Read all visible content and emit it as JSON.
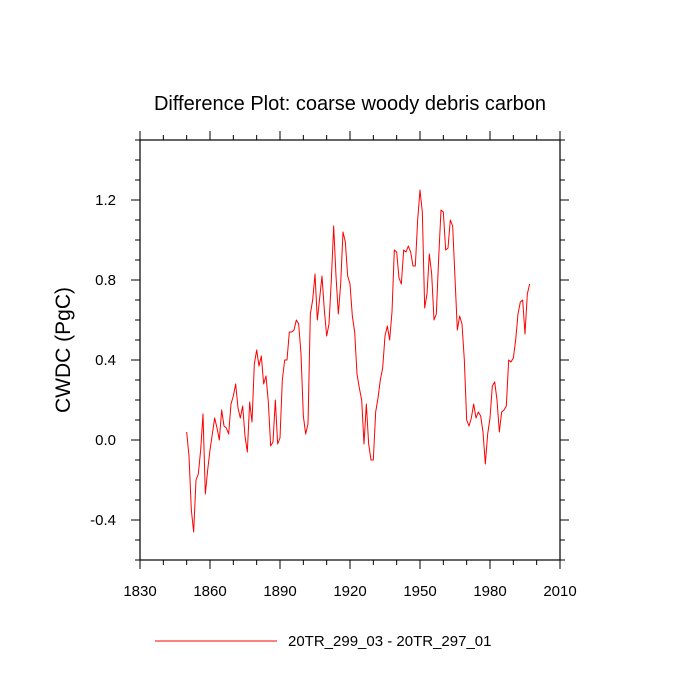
{
  "chart_data": {
    "type": "line",
    "title": "Difference Plot: coarse woody debris carbon",
    "xlabel": "",
    "ylabel": "CWDC  (PgC)",
    "xlim": [
      1830,
      2010
    ],
    "ylim": [
      -0.6,
      1.5
    ],
    "x_ticks": [
      1830,
      1860,
      1890,
      1920,
      1950,
      1980,
      2010
    ],
    "x_tick_labels": [
      "1830",
      "1860",
      "1890",
      "1920",
      "1950",
      "1980",
      "2010"
    ],
    "y_ticks": [
      -0.4,
      0.0,
      0.4,
      0.8,
      1.2
    ],
    "y_tick_labels": [
      "-0.4",
      "0.0",
      "0.4",
      "0.8",
      "1.2"
    ],
    "color": "#ff0000",
    "legend_position": "bottom-center",
    "series": [
      {
        "name": "20TR_299_03 - 20TR_297_01",
        "start_year": 1850,
        "values": [
          0.04,
          -0.08,
          -0.35,
          -0.46,
          -0.2,
          -0.17,
          -0.05,
          0.13,
          -0.27,
          -0.15,
          -0.05,
          0.03,
          0.11,
          0.06,
          0.0,
          0.15,
          0.07,
          0.06,
          0.03,
          0.18,
          0.22,
          0.28,
          0.16,
          0.11,
          0.17,
          0.02,
          -0.06,
          0.19,
          0.09,
          0.38,
          0.45,
          0.37,
          0.42,
          0.28,
          0.32,
          0.19,
          -0.03,
          -0.01,
          0.2,
          -0.02,
          0.01,
          0.3,
          0.4,
          0.4,
          0.54,
          0.54,
          0.55,
          0.6,
          0.58,
          0.43,
          0.12,
          0.03,
          0.08,
          0.63,
          0.7,
          0.83,
          0.6,
          0.71,
          0.82,
          0.65,
          0.52,
          0.58,
          0.8,
          1.07,
          0.82,
          0.63,
          0.78,
          1.04,
          0.99,
          0.82,
          0.78,
          0.62,
          0.54,
          0.33,
          0.26,
          0.2,
          -0.02,
          0.18,
          -0.02,
          -0.1,
          -0.1,
          0.14,
          0.21,
          0.3,
          0.36,
          0.52,
          0.57,
          0.5,
          0.64,
          0.95,
          0.94,
          0.81,
          0.78,
          0.95,
          0.94,
          0.97,
          0.94,
          0.87,
          0.87,
          1.1,
          1.25,
          1.14,
          0.66,
          0.73,
          0.93,
          0.83,
          0.6,
          0.63,
          0.91,
          1.15,
          1.14,
          0.95,
          0.96,
          1.1,
          1.07,
          0.81,
          0.55,
          0.62,
          0.58,
          0.4,
          0.1,
          0.07,
          0.11,
          0.18,
          0.11,
          0.14,
          0.12,
          0.04,
          -0.12,
          0.03,
          0.11,
          0.27,
          0.29,
          0.2,
          0.04,
          0.14,
          0.15,
          0.17,
          0.4,
          0.39,
          0.41,
          0.5,
          0.63,
          0.69,
          0.7,
          0.53,
          0.73,
          0.78
        ]
      }
    ]
  }
}
